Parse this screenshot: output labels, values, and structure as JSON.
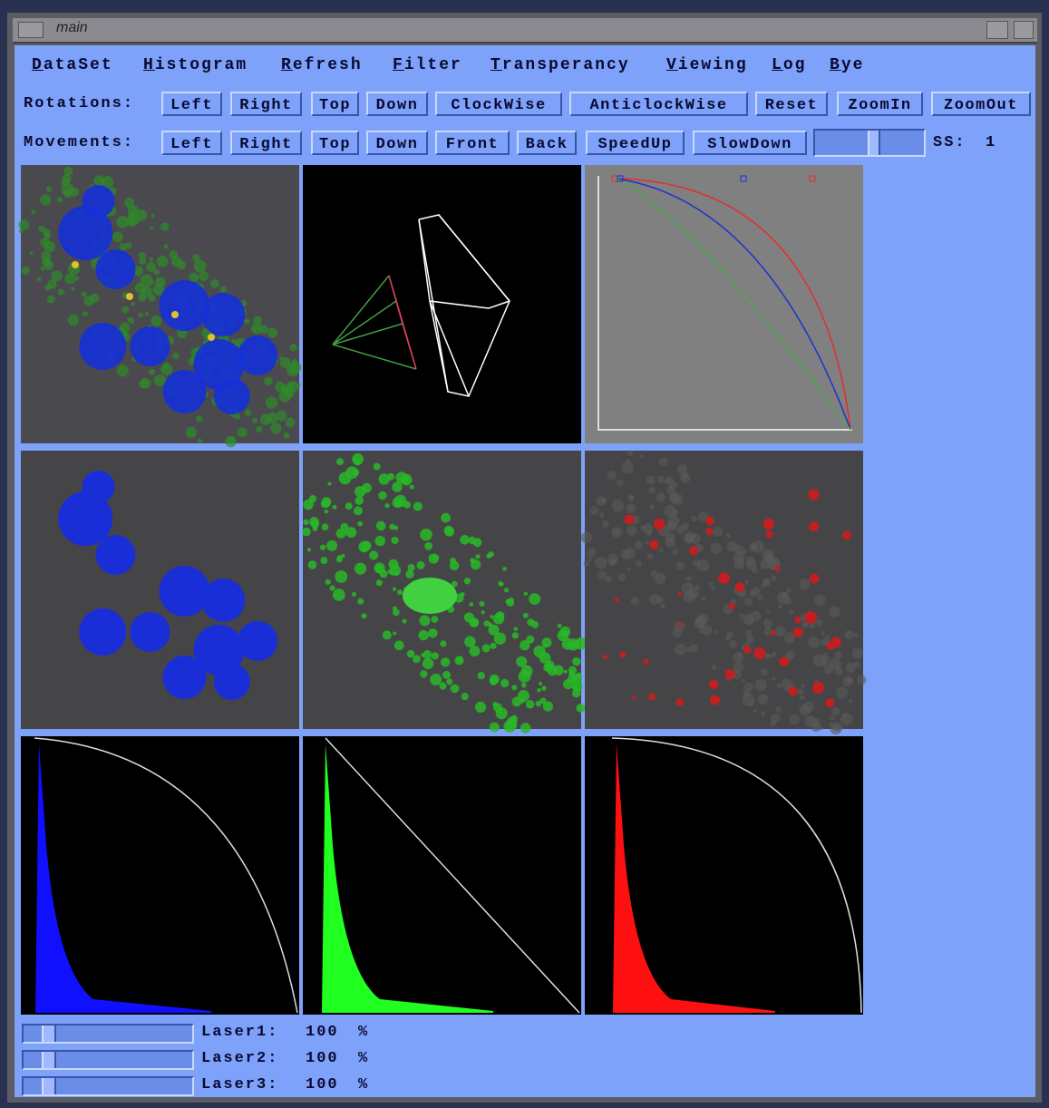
{
  "window": {
    "title": "main"
  },
  "menu": [
    "DataSet",
    "Histogram",
    "Refresh",
    "Filter",
    "Transperancy",
    "Viewing",
    "Log",
    "Bye"
  ],
  "rotations": {
    "label": "Rotations:",
    "buttons": [
      "Left",
      "Right",
      "Top",
      "Down",
      "ClockWise",
      "AnticlockWise",
      "Reset",
      "ZoomIn",
      "ZoomOut"
    ]
  },
  "movements": {
    "label": "Movements:",
    "buttons": [
      "Left",
      "Right",
      "Top",
      "Down",
      "Front",
      "Back",
      "SpeedUp",
      "SlowDown"
    ],
    "ss_label": "SS:",
    "ss_value": 1
  },
  "lasers": [
    {
      "label": "Laser1:",
      "value": 100,
      "unit": "%"
    },
    {
      "label": "Laser2:",
      "value": 100,
      "unit": "%"
    },
    {
      "label": "Laser3:",
      "value": 100,
      "unit": "%"
    }
  ]
}
